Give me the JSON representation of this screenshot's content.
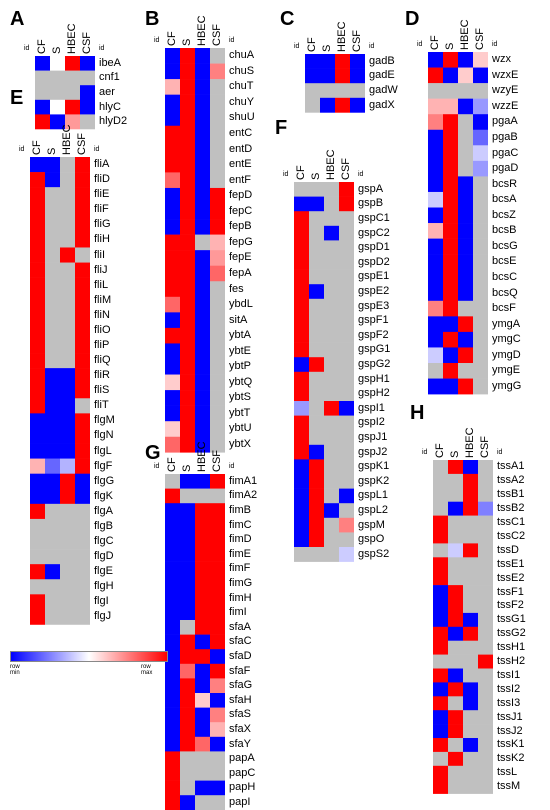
{
  "common": {
    "id_label": "id",
    "colors": {
      "cell_min": "#0000ff",
      "cell_mid": "#ffffff",
      "cell_max": "#ff0000",
      "missing": "#c0c0c0"
    }
  },
  "legend": {
    "min_label": "row min",
    "max_label": "row max"
  },
  "chart_data": [
    {
      "type": "heatmap",
      "panel": "A",
      "columns": [
        "CF",
        "S",
        "HBEC",
        "CSF"
      ],
      "rows": [
        "ibeA",
        "cnf1",
        "aer",
        "hlyC",
        "hlyD2"
      ],
      "values": [
        [
          -1,
          0,
          1,
          -1
        ],
        [
          null,
          null,
          null,
          null
        ],
        [
          null,
          null,
          null,
          -1
        ],
        [
          -1,
          0,
          1,
          -1
        ],
        [
          1,
          -1,
          0.4,
          null
        ]
      ]
    },
    {
      "type": "heatmap",
      "panel": "B",
      "columns": [
        "CF",
        "S",
        "HBEC",
        "CSF"
      ],
      "rows": [
        "chuA",
        "chuS",
        "chuT",
        "chuY",
        "shuU",
        "entC",
        "entD",
        "entE",
        "entF",
        "fepD",
        "fepC",
        "fepB",
        "fepG",
        "fepE",
        "fepA",
        "fes",
        "ybdL",
        "sitA",
        "ybtA",
        "ybtE",
        "ybtP",
        "ybtQ",
        "ybtS",
        "ybtT",
        "ybtU",
        "ybtX"
      ],
      "values": [
        [
          -1,
          1,
          -1,
          null
        ],
        [
          -1,
          1,
          -1,
          0.5
        ],
        [
          0.3,
          1,
          -1,
          null
        ],
        [
          -1,
          1,
          -1,
          null
        ],
        [
          -1,
          1,
          -1,
          null
        ],
        [
          1,
          1,
          -1,
          null
        ],
        [
          1,
          1,
          -1,
          null
        ],
        [
          1,
          1,
          -1,
          null
        ],
        [
          0.6,
          1,
          -1,
          null
        ],
        [
          -1,
          1,
          -1,
          1
        ],
        [
          -1,
          1,
          -1,
          1
        ],
        [
          -1,
          1,
          -1,
          1
        ],
        [
          1,
          1,
          null,
          0.3
        ],
        [
          1,
          1,
          -1,
          0.4
        ],
        [
          1,
          1,
          -1,
          0.6
        ],
        [
          1,
          1,
          -1,
          null
        ],
        [
          0.6,
          1,
          -1,
          null
        ],
        [
          -1,
          1,
          -1,
          null
        ],
        [
          1,
          1,
          -1,
          null
        ],
        [
          -1,
          1,
          -1,
          null
        ],
        [
          -1,
          1,
          -1,
          null
        ],
        [
          0.2,
          1,
          -1,
          null
        ],
        [
          -1,
          1,
          -1,
          null
        ],
        [
          -1,
          1,
          -1,
          null
        ],
        [
          0.2,
          1,
          -1,
          null
        ],
        [
          0.6,
          1,
          -1,
          null
        ]
      ]
    },
    {
      "type": "heatmap",
      "panel": "C",
      "columns": [
        "CF",
        "S",
        "HBEC",
        "CSF"
      ],
      "rows": [
        "gadB",
        "gadE",
        "gadW",
        "gadX"
      ],
      "values": [
        [
          -1,
          -1,
          1,
          -1
        ],
        [
          -1,
          -1,
          1,
          -1
        ],
        [
          null,
          null,
          null,
          null
        ],
        [
          null,
          -1,
          1,
          -1
        ]
      ]
    },
    {
      "type": "heatmap",
      "panel": "D",
      "columns": [
        "CF",
        "S",
        "HBEC",
        "CSF"
      ],
      "rows": [
        "wzx",
        "wzxE",
        "wzyE",
        "wzzE",
        "pgaA",
        "pgaB",
        "pgaC",
        "pgaD",
        "bcsR",
        "bcsA",
        "bcsZ",
        "bcsB",
        "bcsG",
        "bcsE",
        "bcsC",
        "bcsQ",
        "bcsF",
        "ymgA",
        "ymgC",
        "ymgD",
        "ymgE",
        "ymgG"
      ],
      "values": [
        [
          -1,
          1,
          -1,
          0.2
        ],
        [
          1,
          -1,
          0.2,
          -1
        ],
        [
          null,
          null,
          null,
          null
        ],
        [
          0.3,
          0.3,
          -1,
          -0.4
        ],
        [
          0.5,
          1,
          null,
          -1
        ],
        [
          -1,
          1,
          null,
          -0.6
        ],
        [
          -1,
          1,
          null,
          -0.2
        ],
        [
          -1,
          1,
          null,
          -0.4
        ],
        [
          -1,
          1,
          -1,
          null
        ],
        [
          -0.2,
          1,
          -1,
          null
        ],
        [
          -1,
          1,
          -1,
          null
        ],
        [
          0.3,
          1,
          -1,
          null
        ],
        [
          -1,
          1,
          -1,
          null
        ],
        [
          -1,
          1,
          -1,
          null
        ],
        [
          -1,
          1,
          -1,
          null
        ],
        [
          -1,
          1,
          -1,
          null
        ],
        [
          0.5,
          1,
          null,
          null
        ],
        [
          -1,
          -1,
          1,
          null
        ],
        [
          -1,
          1,
          -1,
          null
        ],
        [
          -0.2,
          -1,
          1,
          null
        ],
        [
          null,
          1,
          null,
          null
        ],
        [
          -1,
          -1,
          1,
          null
        ]
      ]
    },
    {
      "type": "heatmap",
      "panel": "E",
      "columns": [
        "CF",
        "S",
        "HBEC",
        "CSF"
      ],
      "rows": [
        "fliA",
        "fliD",
        "fliE",
        "fliF",
        "fliG",
        "fliH",
        "fliI",
        "fliJ",
        "fliL",
        "fliM",
        "fliN",
        "fliO",
        "fliP",
        "fliQ",
        "fliR",
        "fliS",
        "fliT",
        "flgM",
        "flgN",
        "flgL",
        "flgF",
        "flgG",
        "flgK",
        "flgA",
        "flgB",
        "flgC",
        "flgD",
        "flgE",
        "flgH",
        "flgI",
        "flgJ"
      ],
      "values": [
        [
          -1,
          -1,
          null,
          1
        ],
        [
          1,
          -1,
          null,
          1
        ],
        [
          1,
          null,
          null,
          1
        ],
        [
          1,
          null,
          null,
          1
        ],
        [
          1,
          null,
          null,
          1
        ],
        [
          1,
          null,
          null,
          1
        ],
        [
          1,
          null,
          1,
          null
        ],
        [
          1,
          null,
          null,
          1
        ],
        [
          1,
          null,
          null,
          1
        ],
        [
          1,
          null,
          null,
          1
        ],
        [
          1,
          null,
          null,
          1
        ],
        [
          1,
          null,
          null,
          1
        ],
        [
          1,
          null,
          null,
          1
        ],
        [
          1,
          null,
          null,
          1
        ],
        [
          1,
          -1,
          -1,
          1
        ],
        [
          1,
          -1,
          -1,
          1
        ],
        [
          1,
          -1,
          -1,
          null
        ],
        [
          -1,
          -1,
          -1,
          1
        ],
        [
          -1,
          -1,
          -1,
          1
        ],
        [
          -1,
          -1,
          -1,
          1
        ],
        [
          0.3,
          -0.6,
          -0.3,
          1
        ],
        [
          -1,
          -1,
          1,
          -1
        ],
        [
          -1,
          -1,
          1,
          -1
        ],
        [
          1,
          null,
          null,
          null
        ],
        [
          null,
          null,
          null,
          null
        ],
        [
          null,
          null,
          null,
          null
        ],
        [
          null,
          null,
          null,
          null
        ],
        [
          1,
          -1,
          null,
          null
        ],
        [
          null,
          null,
          null,
          null
        ],
        [
          1,
          null,
          null,
          null
        ],
        [
          1,
          null,
          null,
          null
        ]
      ]
    },
    {
      "type": "heatmap",
      "panel": "F",
      "columns": [
        "CF",
        "S",
        "HBEC",
        "CSF"
      ],
      "rows": [
        "gspA",
        "gspB",
        "gspC1",
        "gspC2",
        "gspD1",
        "gspD2",
        "gspE1",
        "gspE2",
        "gspE3",
        "gspF1",
        "gspF2",
        "gspG1",
        "gspG2",
        "gspH1",
        "gspH2",
        "gspI1",
        "gspI2",
        "gspJ1",
        "gspJ2",
        "gspK1",
        "gspK2",
        "gspL1",
        "gspL2",
        "gspM",
        "gspO",
        "gspS2"
      ],
      "values": [
        [
          null,
          null,
          null,
          1
        ],
        [
          -1,
          -1,
          null,
          1
        ],
        [
          1,
          null,
          null,
          null
        ],
        [
          1,
          null,
          -1,
          null
        ],
        [
          1,
          null,
          null,
          null
        ],
        [
          1,
          null,
          null,
          null
        ],
        [
          1,
          null,
          null,
          null
        ],
        [
          1,
          -1,
          null,
          null
        ],
        [
          1,
          null,
          null,
          null
        ],
        [
          1,
          null,
          null,
          null
        ],
        [
          1,
          null,
          null,
          null
        ],
        [
          1,
          null,
          null,
          null
        ],
        [
          -1,
          1,
          null,
          null
        ],
        [
          1,
          null,
          null,
          null
        ],
        [
          1,
          null,
          null,
          null
        ],
        [
          -0.4,
          null,
          1,
          -1
        ],
        [
          1,
          null,
          null,
          null
        ],
        [
          1,
          null,
          null,
          null
        ],
        [
          1,
          -1,
          null,
          null
        ],
        [
          -1,
          1,
          null,
          null
        ],
        [
          -1,
          1,
          null,
          null
        ],
        [
          -1,
          1,
          null,
          -1
        ],
        [
          -1,
          1,
          -1,
          null
        ],
        [
          -1,
          1,
          null,
          0.5
        ],
        [
          -1,
          1,
          null,
          null
        ],
        [
          null,
          null,
          null,
          -0.2
        ]
      ]
    },
    {
      "type": "heatmap",
      "panel": "G",
      "columns": [
        "CF",
        "S",
        "HBEC",
        "CSF"
      ],
      "rows": [
        "fimA1",
        "fimA2",
        "fimB",
        "fimC",
        "fimD",
        "fimE",
        "fimF",
        "fimG",
        "fimH",
        "fimI",
        "sfaA",
        "sfaC",
        "sfaD",
        "sfaF",
        "sfaG",
        "sfaH",
        "sfaS",
        "sfaX",
        "sfaY",
        "papA",
        "papC",
        "papH",
        "papI"
      ],
      "values": [
        [
          null,
          -1,
          -1,
          1
        ],
        [
          1,
          null,
          null,
          null
        ],
        [
          -1,
          -1,
          1,
          1
        ],
        [
          -1,
          -1,
          1,
          1
        ],
        [
          -1,
          -1,
          1,
          1
        ],
        [
          -1,
          -1,
          1,
          1
        ],
        [
          -1,
          -1,
          1,
          1
        ],
        [
          -1,
          -1,
          1,
          1
        ],
        [
          -1,
          -1,
          1,
          1
        ],
        [
          -1,
          -1,
          1,
          1
        ],
        [
          -1,
          null,
          1,
          1
        ],
        [
          -1,
          1,
          -1,
          1
        ],
        [
          -1,
          1,
          1,
          -1
        ],
        [
          -1,
          0.6,
          -1,
          1
        ],
        [
          -1,
          1,
          -1,
          0.5
        ],
        [
          -1,
          1,
          0.2,
          -1
        ],
        [
          -1,
          1,
          -1,
          0.5
        ],
        [
          -1,
          1,
          -1,
          0.3
        ],
        [
          -1,
          1,
          0.6,
          -1
        ],
        [
          1,
          null,
          null,
          null
        ],
        [
          1,
          null,
          null,
          null
        ],
        [
          1,
          null,
          -1,
          -1
        ],
        [
          1,
          -1,
          null,
          null
        ]
      ]
    },
    {
      "type": "heatmap",
      "panel": "H",
      "columns": [
        "CF",
        "S",
        "HBEC",
        "CSF"
      ],
      "rows": [
        "tssA1",
        "tssA2",
        "tssB1",
        "tssB2",
        "tssC1",
        "tssC2",
        "tssD",
        "tssE1",
        "tssE2",
        "tssF1",
        "tssF2",
        "tssG1",
        "tssG2",
        "tssH1",
        "tssH2",
        "tssI1",
        "tssI2",
        "tssI3",
        "tssJ1",
        "tssJ2",
        "tssK1",
        "tssK2",
        "tssL",
        "tssM"
      ],
      "values": [
        [
          null,
          1,
          -1,
          null
        ],
        [
          null,
          null,
          1,
          null
        ],
        [
          null,
          null,
          1,
          null
        ],
        [
          null,
          -1,
          1,
          -0.5
        ],
        [
          1,
          null,
          null,
          null
        ],
        [
          1,
          null,
          null,
          null
        ],
        [
          null,
          -0.2,
          1,
          null
        ],
        [
          1,
          null,
          null,
          null
        ],
        [
          1,
          null,
          null,
          null
        ],
        [
          -1,
          1,
          null,
          null
        ],
        [
          -1,
          1,
          null,
          null
        ],
        [
          -1,
          1,
          -1,
          null
        ],
        [
          1,
          -1,
          1,
          null
        ],
        [
          1,
          null,
          null,
          null
        ],
        [
          null,
          null,
          null,
          1
        ],
        [
          1,
          -1,
          null,
          null
        ],
        [
          -1,
          1,
          -1,
          null
        ],
        [
          1,
          null,
          -1,
          null
        ],
        [
          -1,
          1,
          null,
          null
        ],
        [
          -1,
          1,
          null,
          null
        ],
        [
          1,
          null,
          -1,
          null
        ],
        [
          null,
          1,
          null,
          null
        ],
        [
          1,
          null,
          null,
          null
        ],
        [
          1,
          null,
          null,
          null
        ]
      ]
    }
  ]
}
